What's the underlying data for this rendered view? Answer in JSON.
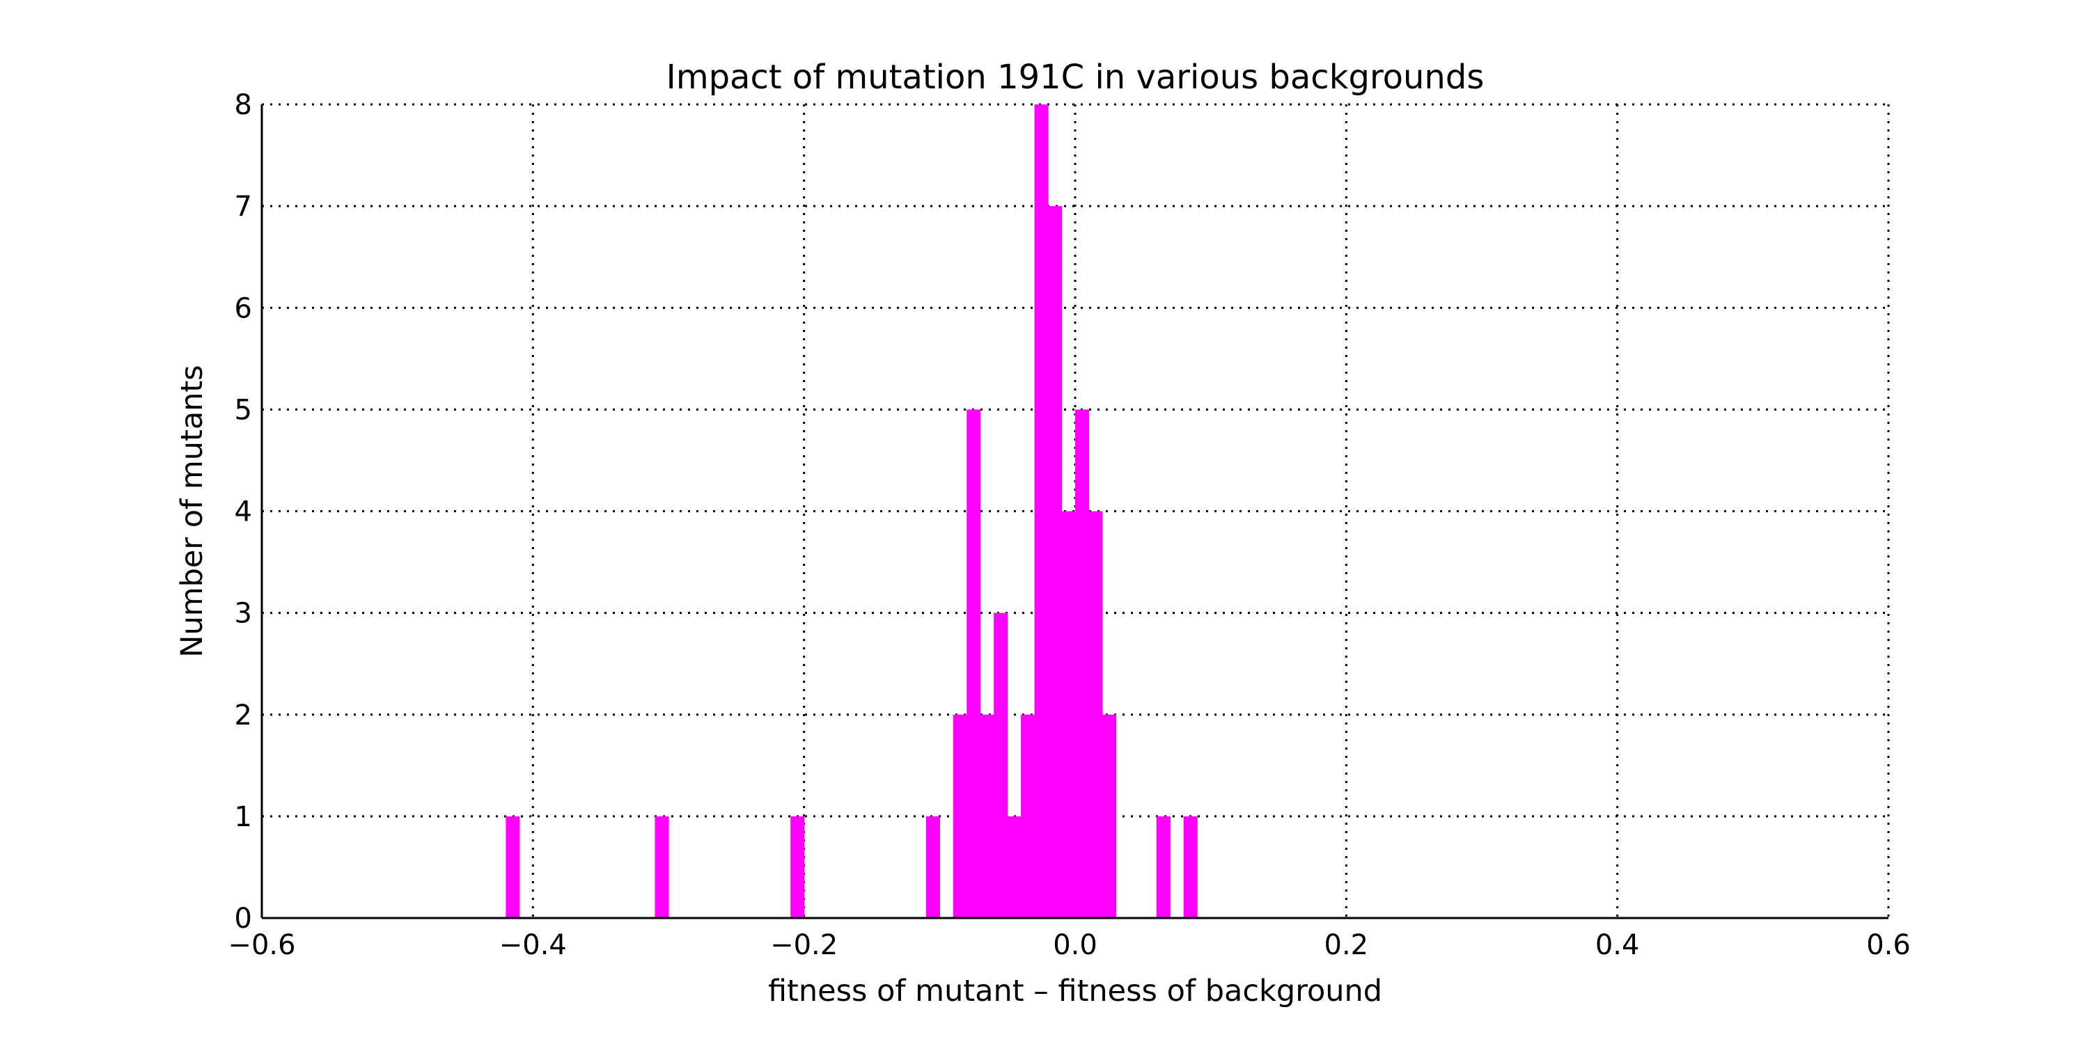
{
  "chart_data": {
    "type": "bar",
    "title": "Impact of mutation 191C in various backgrounds",
    "xlabel": "fitness of mutant  –  fitness of background",
    "ylabel": "Number of mutants",
    "xlim": [
      -0.6,
      0.6
    ],
    "ylim": [
      0,
      8
    ],
    "xticks": [
      -0.6,
      -0.4,
      -0.2,
      0.0,
      0.2,
      0.4,
      0.6
    ],
    "xtick_labels": [
      "−0.6",
      "−0.4",
      "−0.2",
      "0.0",
      "0.2",
      "0.4",
      "0.6"
    ],
    "yticks": [
      0,
      1,
      2,
      3,
      4,
      5,
      6,
      7,
      8
    ],
    "ytick_labels": [
      "0",
      "1",
      "2",
      "3",
      "4",
      "5",
      "6",
      "7",
      "8"
    ],
    "grid": true,
    "bar_color": "#ff00ff",
    "bin_width": 0.01,
    "bins": [
      {
        "start": -0.42,
        "count": 1
      },
      {
        "start": -0.31,
        "count": 1
      },
      {
        "start": -0.21,
        "count": 1
      },
      {
        "start": -0.11,
        "count": 1
      },
      {
        "start": -0.09,
        "count": 2
      },
      {
        "start": -0.08,
        "count": 5
      },
      {
        "start": -0.07,
        "count": 2
      },
      {
        "start": -0.06,
        "count": 3
      },
      {
        "start": -0.05,
        "count": 1
      },
      {
        "start": -0.04,
        "count": 2
      },
      {
        "start": -0.03,
        "count": 8
      },
      {
        "start": -0.02,
        "count": 7
      },
      {
        "start": -0.01,
        "count": 4
      },
      {
        "start": 0.0,
        "count": 5
      },
      {
        "start": 0.01,
        "count": 4
      },
      {
        "start": 0.02,
        "count": 2
      },
      {
        "start": 0.06,
        "count": 1
      },
      {
        "start": 0.08,
        "count": 1
      }
    ]
  }
}
